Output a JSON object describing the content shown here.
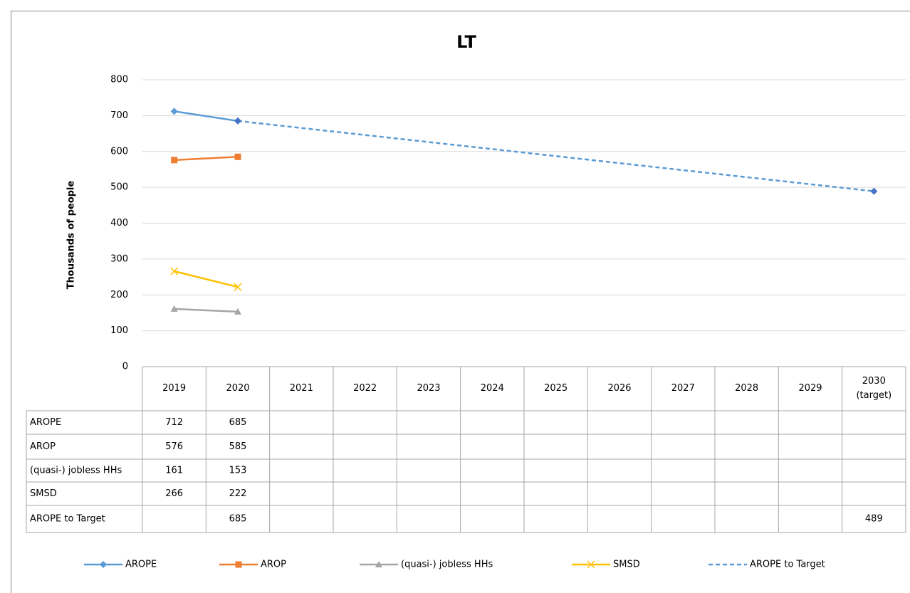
{
  "chart_data": {
    "type": "line",
    "title": "LT",
    "y_label": "Thousands of people",
    "categories": [
      "2019",
      "2020",
      "2021",
      "2022",
      "2023",
      "2024",
      "2025",
      "2026",
      "2027",
      "2028",
      "2029",
      "2030 (target)"
    ],
    "series": [
      {
        "name": "AROPE",
        "color": "#5b9bd5",
        "marker": "diamond",
        "dash": false,
        "span_gaps": false,
        "values": [
          712,
          685,
          null,
          null,
          null,
          null,
          null,
          null,
          null,
          null,
          null,
          null
        ]
      },
      {
        "name": "AROP",
        "color": "#ed7d31",
        "marker": "square",
        "dash": false,
        "span_gaps": false,
        "values": [
          576,
          585,
          null,
          null,
          null,
          null,
          null,
          null,
          null,
          null,
          null,
          null
        ]
      },
      {
        "name": "(quasi-) jobless HHs",
        "color": "#a5a5a5",
        "marker": "triangle",
        "dash": false,
        "span_gaps": false,
        "values": [
          161,
          153,
          null,
          null,
          null,
          null,
          null,
          null,
          null,
          null,
          null,
          null
        ]
      },
      {
        "name": "SMSD",
        "color": "#ffc000",
        "marker": "x",
        "dash": false,
        "span_gaps": false,
        "values": [
          266,
          222,
          null,
          null,
          null,
          null,
          null,
          null,
          null,
          null,
          null,
          null
        ]
      },
      {
        "name": "AROPE to Target",
        "color": "#5b9bd5",
        "marker": "diamond",
        "marker_color": "#4472c4",
        "dash": true,
        "span_gaps": true,
        "values": [
          null,
          685,
          null,
          null,
          null,
          null,
          null,
          null,
          null,
          null,
          null,
          489
        ]
      }
    ],
    "ylim": [
      0,
      800
    ],
    "yticks": [
      0,
      100,
      200,
      300,
      400,
      500,
      600,
      700,
      800
    ],
    "grid": true,
    "data_table": true,
    "legend": "bottom"
  }
}
